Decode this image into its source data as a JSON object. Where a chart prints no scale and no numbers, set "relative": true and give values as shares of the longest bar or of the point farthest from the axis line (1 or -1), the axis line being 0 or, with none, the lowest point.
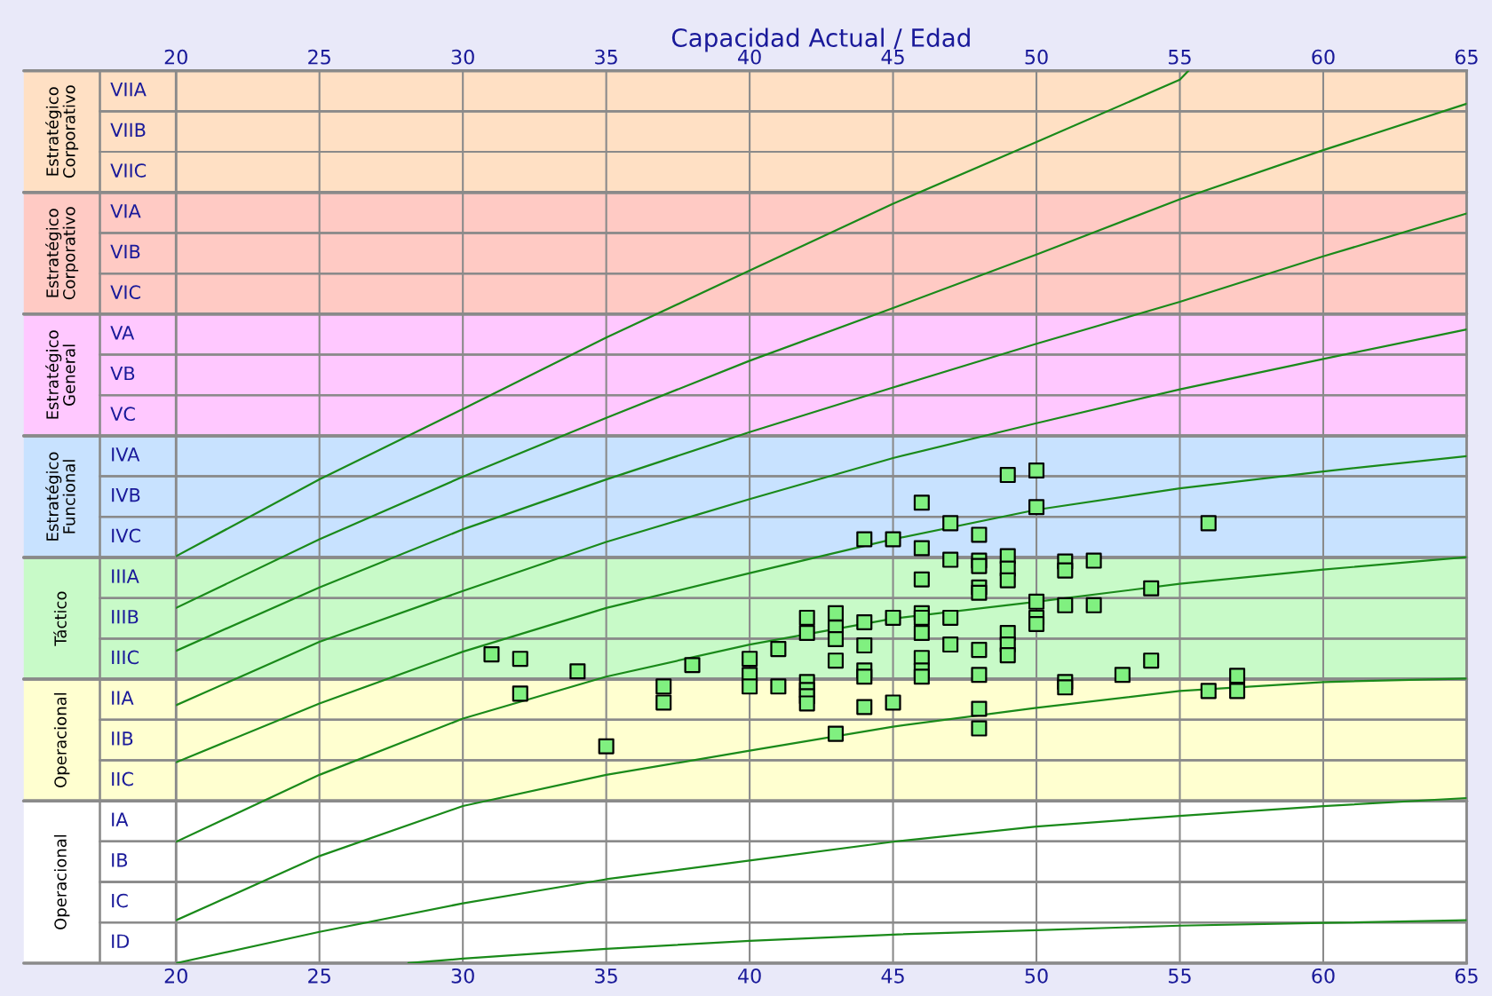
{
  "chart_data": {
    "type": "scatter",
    "relative": true,
    "xlabel": "Capacidad Actual / Edad",
    "xlim": [
      20,
      65
    ],
    "xticks": [
      20,
      25,
      30,
      35,
      40,
      45,
      50,
      55,
      60,
      65
    ],
    "x2lim": [
      20,
      65
    ],
    "x2ticks": [
      20,
      25,
      30,
      35,
      40,
      45,
      50,
      55,
      60,
      65
    ],
    "grid": "x",
    "bands": [
      {
        "axis": "y",
        "from": 0.8636,
        "to": 1,
        "label": "Estratégico Corporativo",
        "color": "#ffe0c4"
      },
      {
        "axis": "y",
        "from": 0.7273,
        "to": 0.8636,
        "label": "Estratégico Corporativo",
        "color": "#ffcac4"
      },
      {
        "axis": "y",
        "from": 0.5909,
        "to": 0.7273,
        "label": "Estratégico General",
        "color": "#ffc8ff"
      },
      {
        "axis": "y",
        "from": 0.4545,
        "to": 0.5909,
        "label": "Estratégico Funcional",
        "color": "#c8e2ff"
      },
      {
        "axis": "y",
        "from": 0.3182,
        "to": 0.4545,
        "label": "Táctico",
        "color": "#c8fac8"
      },
      {
        "axis": "y",
        "from": 0.1818,
        "to": 0.3182,
        "label": "Operacional",
        "color": "#ffffd0"
      },
      {
        "axis": "y",
        "from": 0,
        "to": 0.1818,
        "label": "Operacional",
        "color": "#ffffff"
      },
      {
        "axis": "y",
        "from": 0.9545,
        "to": 1,
        "label": "VIIA",
        "color": "#ffe0c4"
      },
      {
        "axis": "y",
        "from": 0.9091,
        "to": 0.9545,
        "label": "VIIB",
        "color": "#ffe0c4"
      },
      {
        "axis": "y",
        "from": 0.8636,
        "to": 0.9091,
        "label": "VIIC",
        "color": "#ffe0c4"
      },
      {
        "axis": "y",
        "from": 0.8182,
        "to": 0.8636,
        "label": "VIA",
        "color": "#ffcac4"
      },
      {
        "axis": "y",
        "from": 0.7727,
        "to": 0.8182,
        "label": "VIB",
        "color": "#ffcac4"
      },
      {
        "axis": "y",
        "from": 0.7273,
        "to": 0.7727,
        "label": "VIC",
        "color": "#ffcac4"
      },
      {
        "axis": "y",
        "from": 0.6818,
        "to": 0.7273,
        "label": "VA",
        "color": "#ffc8ff"
      },
      {
        "axis": "y",
        "from": 0.6364,
        "to": 0.6818,
        "label": "VB",
        "color": "#ffc8ff"
      },
      {
        "axis": "y",
        "from": 0.5909,
        "to": 0.6364,
        "label": "VC",
        "color": "#ffc8ff"
      },
      {
        "axis": "y",
        "from": 0.5455,
        "to": 0.5909,
        "label": "IVA",
        "color": "#c8e2ff"
      },
      {
        "axis": "y",
        "from": 0.5,
        "to": 0.5455,
        "label": "IVB",
        "color": "#c8e2ff"
      },
      {
        "axis": "y",
        "from": 0.4545,
        "to": 0.5,
        "label": "IVC",
        "color": "#c8e2ff"
      },
      {
        "axis": "y",
        "from": 0.4091,
        "to": 0.4545,
        "label": "IIIA",
        "color": "#c8fac8"
      },
      {
        "axis": "y",
        "from": 0.3636,
        "to": 0.4091,
        "label": "IIIB",
        "color": "#c8fac8"
      },
      {
        "axis": "y",
        "from": 0.3182,
        "to": 0.3636,
        "label": "IIIC",
        "color": "#c8fac8"
      },
      {
        "axis": "y",
        "from": 0.2727,
        "to": 0.3182,
        "label": "IIA",
        "color": "#ffffd0"
      },
      {
        "axis": "y",
        "from": 0.2273,
        "to": 0.2727,
        "label": "IIB",
        "color": "#ffffd0"
      },
      {
        "axis": "y",
        "from": 0.1818,
        "to": 0.2273,
        "label": "IIC",
        "color": "#ffffd0"
      },
      {
        "axis": "y",
        "from": 0.1364,
        "to": 0.1818,
        "label": "IA",
        "color": "#ffffff"
      },
      {
        "axis": "y",
        "from": 0.0909,
        "to": 0.1364,
        "label": "IB",
        "color": "#ffffff"
      },
      {
        "axis": "y",
        "from": 0.0455,
        "to": 0.0909,
        "label": "IC",
        "color": "#ffffff"
      },
      {
        "axis": "y",
        "from": 0,
        "to": 0.0455,
        "label": "ID",
        "color": "#ffffff"
      }
    ],
    "series": [
      {
        "type": "line",
        "color": "#1a8a1a",
        "x": [
          20,
          25,
          30,
          35,
          40,
          45,
          50,
          55,
          55.3
        ],
        "values": [
          0.456,
          0.542,
          0.621,
          0.701,
          0.776,
          0.851,
          0.92,
          0.99,
          1
        ]
      },
      {
        "type": "line",
        "color": "#1a8a1a",
        "x": [
          20,
          25,
          30,
          35,
          40,
          45,
          50,
          55,
          60,
          65
        ],
        "values": [
          0.398,
          0.475,
          0.545,
          0.611,
          0.675,
          0.734,
          0.794,
          0.856,
          0.911,
          0.963
        ]
      },
      {
        "type": "line",
        "color": "#1a8a1a",
        "x": [
          20,
          25,
          30,
          35,
          40,
          45,
          50,
          55,
          60,
          65
        ],
        "values": [
          0.35,
          0.421,
          0.486,
          0.542,
          0.595,
          0.645,
          0.694,
          0.741,
          0.792,
          0.84
        ]
      },
      {
        "type": "line",
        "color": "#1a8a1a",
        "x": [
          20,
          25,
          30,
          35,
          40,
          45,
          50,
          55,
          60,
          65
        ],
        "values": [
          0.289,
          0.36,
          0.417,
          0.472,
          0.52,
          0.566,
          0.605,
          0.643,
          0.677,
          0.71
        ]
      },
      {
        "type": "line",
        "color": "#1a8a1a",
        "x": [
          20,
          25,
          30,
          35,
          40,
          45,
          50,
          55,
          60,
          65
        ],
        "values": [
          0.225,
          0.291,
          0.349,
          0.398,
          0.437,
          0.475,
          0.508,
          0.532,
          0.551,
          0.568
        ]
      },
      {
        "type": "line",
        "color": "#1a8a1a",
        "x": [
          20,
          25,
          30,
          35,
          40,
          45,
          50,
          55,
          60,
          65
        ],
        "values": [
          0.136,
          0.211,
          0.274,
          0.321,
          0.357,
          0.386,
          0.405,
          0.425,
          0.441,
          0.455
        ]
      },
      {
        "type": "line",
        "color": "#1a8a1a",
        "x": [
          20,
          25,
          30,
          35,
          40,
          45,
          50,
          55,
          60,
          65
        ],
        "values": [
          0.048,
          0.12,
          0.176,
          0.211,
          0.238,
          0.265,
          0.286,
          0.305,
          0.315,
          0.319
        ]
      },
      {
        "type": "line",
        "color": "#1a8a1a",
        "x": [
          20,
          25,
          30,
          35,
          40,
          45,
          50,
          55,
          60,
          65
        ],
        "values": [
          0,
          0.035,
          0.067,
          0.094,
          0.115,
          0.136,
          0.153,
          0.165,
          0.176,
          0.185
        ]
      },
      {
        "type": "line",
        "color": "#1a8a1a",
        "x": [
          28.1,
          30,
          35,
          40,
          45,
          50,
          55,
          60,
          65
        ],
        "values": [
          0,
          0.005,
          0.016,
          0.025,
          0.032,
          0.037,
          0.042,
          0.045,
          0.048
        ]
      },
      {
        "color": "#80f080",
        "marker": "square",
        "x": [
          31,
          32,
          32,
          34,
          35,
          37,
          37,
          38,
          40,
          40,
          40,
          41,
          41,
          42,
          42,
          42,
          42,
          42,
          42,
          43,
          43,
          43,
          43,
          43,
          44,
          44,
          44,
          44,
          44,
          44,
          45,
          45,
          45,
          46,
          46,
          46,
          46,
          46,
          46,
          46,
          46,
          46,
          47,
          47,
          47,
          47,
          48,
          48,
          48,
          48,
          48,
          48,
          48,
          48,
          48,
          49,
          49,
          49,
          49,
          49,
          49,
          49,
          50,
          50,
          50,
          50,
          50,
          51,
          51,
          51,
          51,
          51,
          52,
          52,
          53,
          54,
          54,
          56,
          56,
          57,
          57
        ],
        "values": [
          0.346,
          0.341,
          0.302,
          0.327,
          0.243,
          0.31,
          0.292,
          0.334,
          0.341,
          0.323,
          0.31,
          0.352,
          0.31,
          0.387,
          0.37,
          0.315,
          0.306,
          0.299,
          0.291,
          0.392,
          0.376,
          0.363,
          0.339,
          0.257,
          0.475,
          0.382,
          0.356,
          0.328,
          0.321,
          0.287,
          0.475,
          0.387,
          0.292,
          0.516,
          0.465,
          0.43,
          0.392,
          0.387,
          0.37,
          0.342,
          0.328,
          0.321,
          0.493,
          0.452,
          0.387,
          0.357,
          0.48,
          0.451,
          0.445,
          0.421,
          0.415,
          0.351,
          0.323,
          0.285,
          0.263,
          0.547,
          0.456,
          0.442,
          0.429,
          0.37,
          0.357,
          0.345,
          0.552,
          0.511,
          0.405,
          0.387,
          0.38,
          0.45,
          0.44,
          0.401,
          0.315,
          0.309,
          0.451,
          0.401,
          0.323,
          0.42,
          0.339,
          0.493,
          0.305,
          0.322,
          0.305
        ]
      }
    ]
  }
}
